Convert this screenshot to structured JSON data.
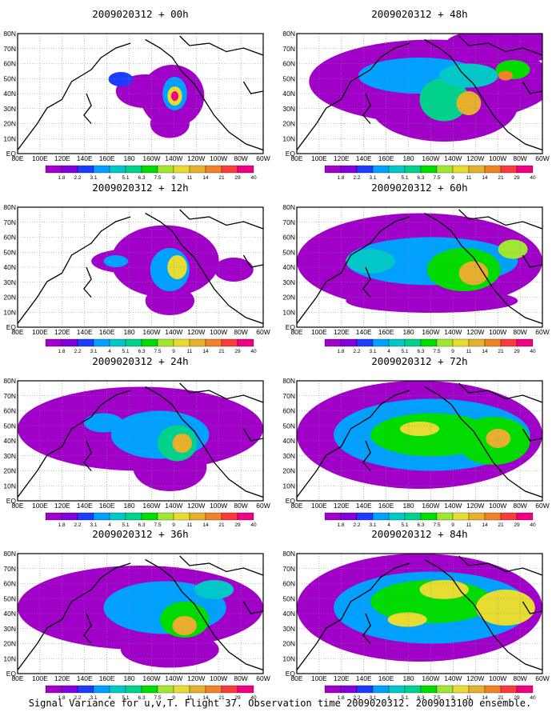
{
  "panels": [
    {
      "title": "2009020312 + 00h",
      "col": 0,
      "row": 0
    },
    {
      "title": "2009020312 + 48h",
      "col": 1,
      "row": 0
    },
    {
      "title": "2009020312 + 12h",
      "col": 0,
      "row": 1
    },
    {
      "title": "2009020312 + 60h",
      "col": 1,
      "row": 1
    },
    {
      "title": "2009020312 + 24h",
      "col": 0,
      "row": 2
    },
    {
      "title": "2009020312 + 72h",
      "col": 1,
      "row": 2
    },
    {
      "title": "2009020312 + 36h",
      "col": 0,
      "row": 3
    },
    {
      "title": "2009020312 + 84h",
      "col": 1,
      "row": 3
    }
  ],
  "lon_labels": [
    "80E",
    "100E",
    "120E",
    "140E",
    "160E",
    "180",
    "160W",
    "140W",
    "120W",
    "100W",
    "80W",
    "60W"
  ],
  "lat_labels": [
    "80N",
    "70N",
    "60N",
    "50N",
    "40N",
    "30N",
    "20N",
    "10N",
    "EQ"
  ],
  "colorbar": {
    "levels": [
      "1.8",
      "2.2",
      "3.1",
      "4",
      "5.1",
      "6.3",
      "7.5",
      "9",
      "11",
      "14",
      "21",
      "29",
      "40"
    ],
    "colors": [
      "#a000c8",
      "#8200dc",
      "#1e3cff",
      "#00a0ff",
      "#00c8c8",
      "#00d28c",
      "#00dc00",
      "#a0e632",
      "#e6dc32",
      "#e6af2d",
      "#f08228",
      "#fa3c3c",
      "#f00082"
    ]
  },
  "caption": "Signal Variance for u,v,T. Flight 37. Observation time 2009020312. 2009013100 ensemble."
}
